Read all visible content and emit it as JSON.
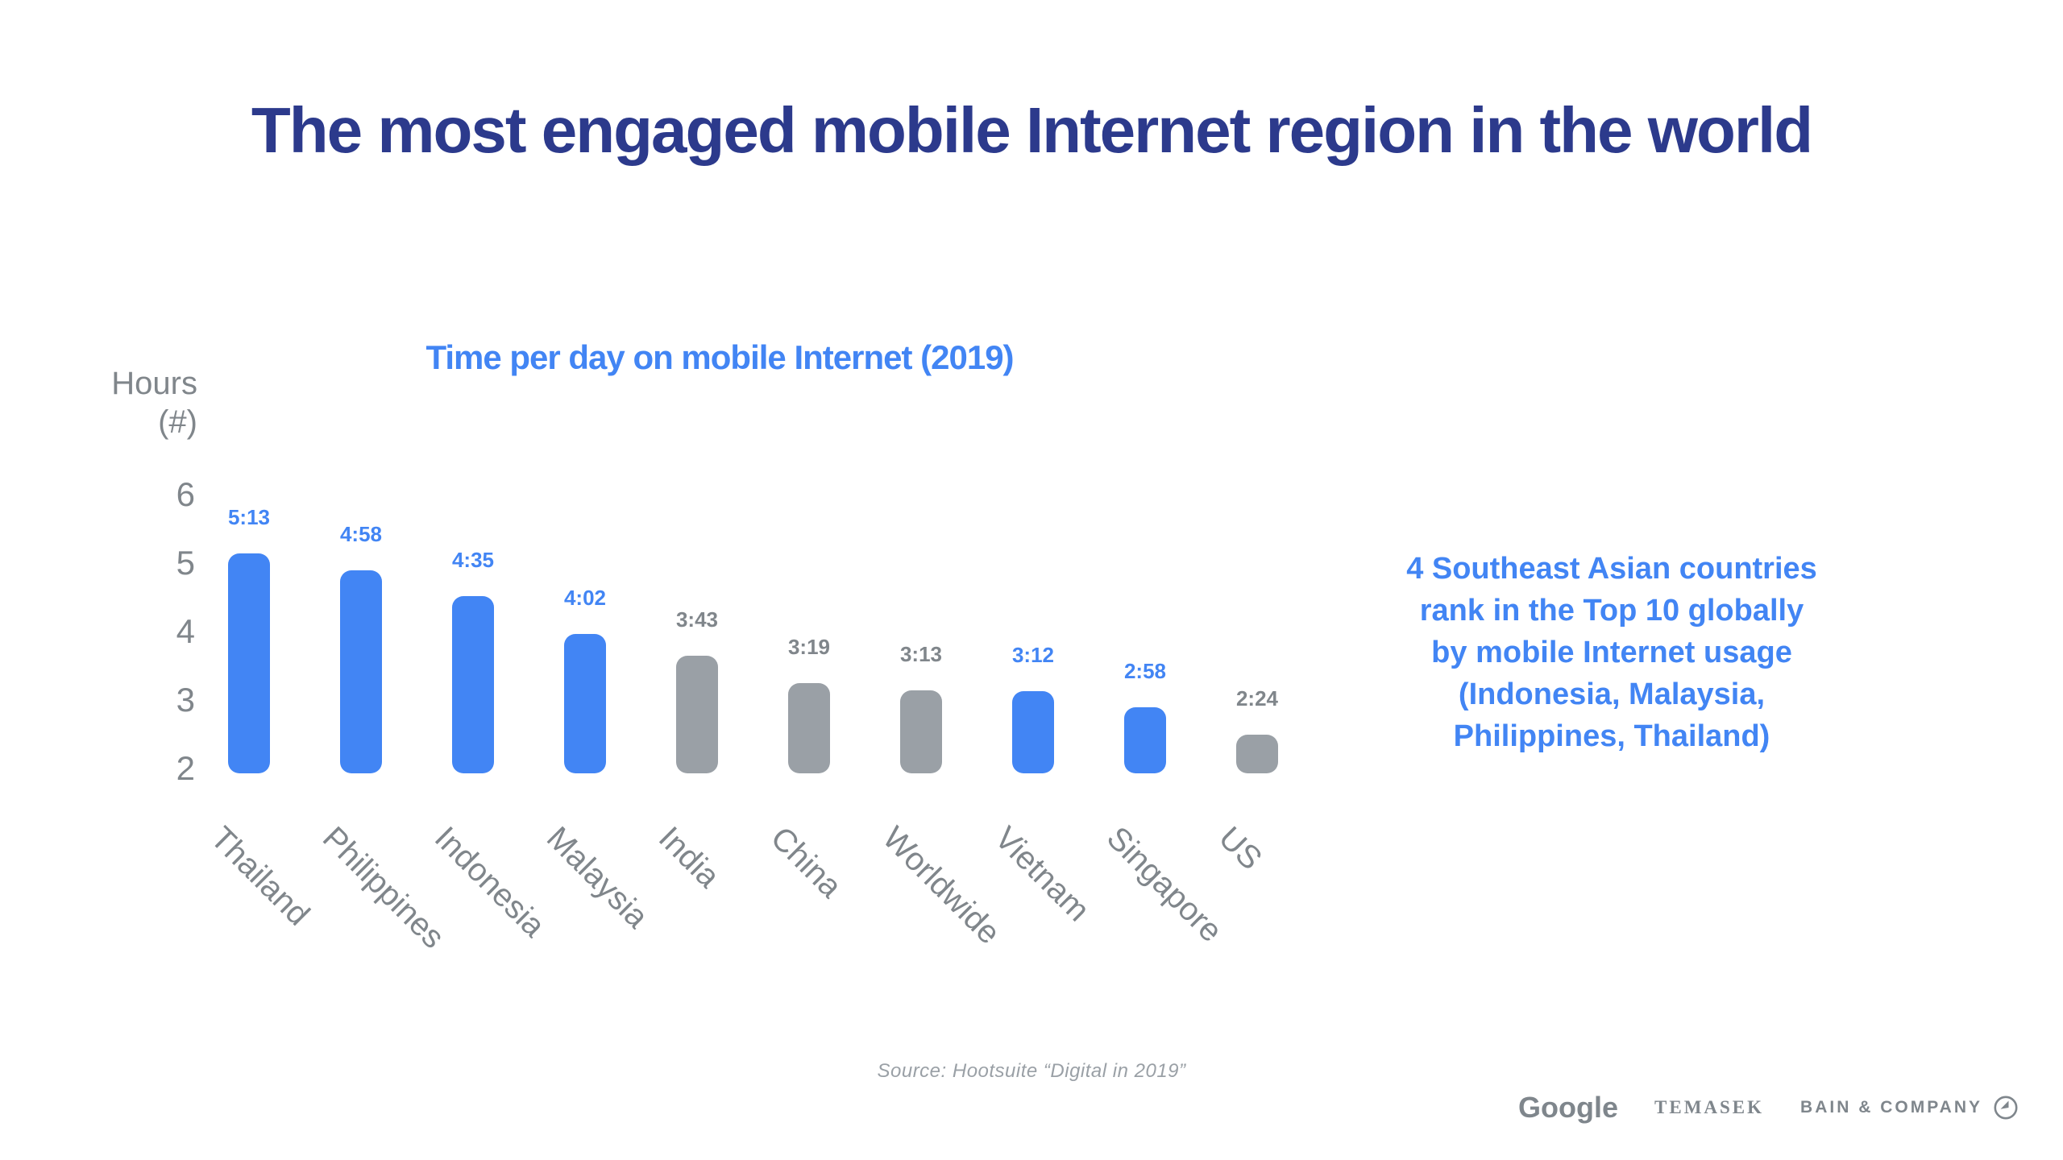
{
  "slide": {
    "title": "The most engaged mobile Internet region in the world",
    "source_note": "Source: Hootsuite “Digital in 2019”",
    "footer_logos": [
      "Google",
      "TEMASEK",
      "BAIN & COMPANY"
    ]
  },
  "colors": {
    "title_navy": "#2c3a8c",
    "accent_blue": "#4285f4",
    "bar_blue": "#4285f4",
    "bar_gray": "#9aa0a6",
    "text_gray": "#80868b",
    "source_gray": "#9aa0a6",
    "footer_gray": "#7f868c"
  },
  "chart_data": {
    "type": "bar",
    "title": "Time per day on mobile Internet (2019)",
    "ylabel_lines": [
      "Hours",
      "(#)"
    ],
    "yticks": [
      6,
      5,
      4,
      3,
      2
    ],
    "ylim": [
      2,
      6
    ],
    "grid": false,
    "legend": "none",
    "categories": [
      "Thailand",
      "Philippines",
      "Indonesia",
      "Malaysia",
      "India",
      "China",
      "Worldwide",
      "Vietnam",
      "Singapore",
      "US"
    ],
    "series": [
      {
        "name": "Time per day on mobile Internet (hours)",
        "values": [
          5.217,
          4.967,
          4.583,
          4.033,
          3.717,
          3.317,
          3.217,
          3.2,
          2.967,
          2.4
        ],
        "labels": [
          "5:13",
          "4:58",
          "4:35",
          "4:02",
          "3:43",
          "3:19",
          "3:13",
          "3:12",
          "2:58",
          "2:24"
        ],
        "highlighted": [
          true,
          true,
          true,
          true,
          false,
          false,
          false,
          true,
          true,
          false
        ]
      }
    ],
    "highlight_meaning": "Southeast Asian countries shown in blue, others in gray"
  },
  "annotation": {
    "lines": [
      "4 Southeast Asian countries",
      "rank in the Top 10 globally",
      "by mobile Internet usage",
      "(Indonesia, Malaysia,",
      "Philippines, Thailand)"
    ]
  }
}
